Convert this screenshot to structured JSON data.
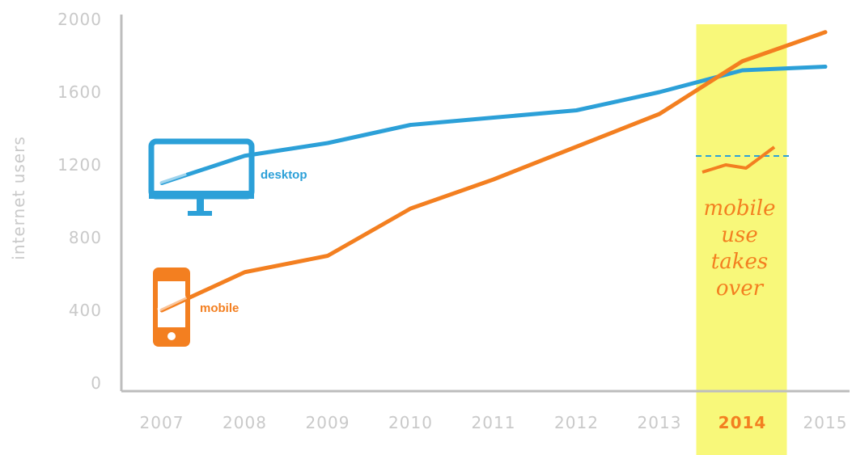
{
  "chart_data": {
    "type": "line",
    "ylabel": "internet users",
    "xlabel": "",
    "x": [
      "2007",
      "2008",
      "2009",
      "2010",
      "2011",
      "2012",
      "2013",
      "2014",
      "2015"
    ],
    "highlight_x": "2014",
    "ylim": [
      0,
      2000
    ],
    "yticks": [
      "0",
      "400",
      "800",
      "1200",
      "1600",
      "2000"
    ],
    "grid": false,
    "series": [
      {
        "name": "desktop",
        "color": "#2ca0d8",
        "icon": "desktop-monitor-icon",
        "values": [
          1100,
          1250,
          1320,
          1420,
          1460,
          1500,
          1600,
          1720,
          1740
        ]
      },
      {
        "name": "mobile",
        "color": "#f37f20",
        "icon": "mobile-phone-icon",
        "values": [
          400,
          610,
          700,
          960,
          1120,
          1300,
          1480,
          1770,
          1930
        ]
      }
    ],
    "highlight_color": "#f8f87a",
    "annotation": {
      "lines": [
        "mobile",
        "use",
        "takes",
        "over"
      ],
      "icon": "mobile-overtakes-sparkline-icon"
    }
  }
}
